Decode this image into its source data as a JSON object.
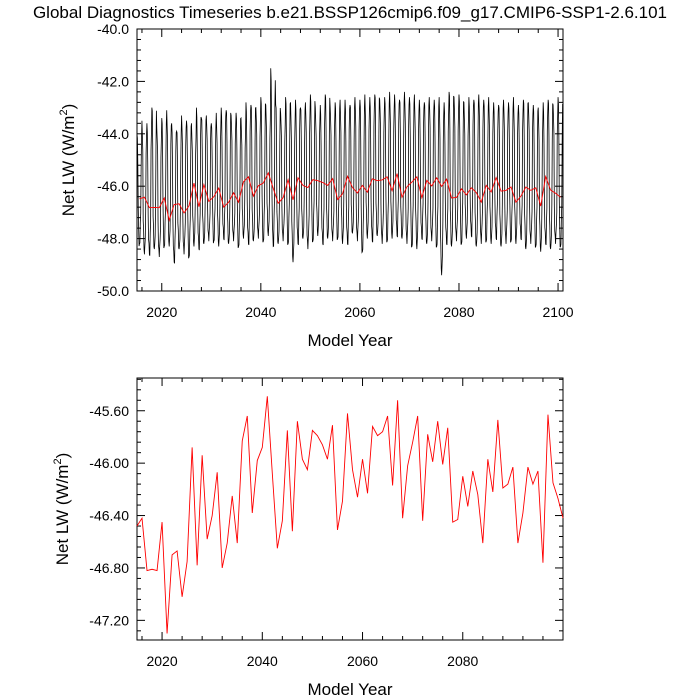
{
  "title": "Global Diagnostics Timeseries b.e21.BSSP126cmip6.f09_g17.CMIP6-SSP1-2.6.101",
  "colors": {
    "monthly": "#000000",
    "annual": "#ff0000"
  },
  "chart_data": [
    {
      "type": "line",
      "xlabel": "Model Year",
      "ylabel": "Net LW (W/m",
      "ylabel_sup": "2",
      "ylabel_close": ")",
      "xlim": [
        2015,
        2101
      ],
      "ylim": [
        -50.0,
        -40.0
      ],
      "xticks": [
        2020,
        2040,
        2060,
        2080,
        2100
      ],
      "xtick_labels": [
        "2020",
        "2040",
        "2060",
        "2080",
        "2100"
      ],
      "yticks": [
        -50.0,
        -48.0,
        -46.0,
        -44.0,
        -42.0,
        -40.0
      ],
      "ytick_labels": [
        "-50.0",
        "-48.0",
        "-46.0",
        "-44.0",
        "-42.0",
        "-40.0"
      ],
      "series": [
        {
          "name": "monthly",
          "color": "#000000",
          "description_values": "monthly mean, seasonal cycle between approx -48.5 (trough) and -43.5 (peak)",
          "start_year": 2015,
          "annual_peaks": [
            -44.0,
            -43.5,
            -43.6,
            -43.0,
            -43.8,
            -43.4,
            -43.1,
            -43.6,
            -43.9,
            -43.3,
            -43.5,
            -43.6,
            -43.0,
            -43.4,
            -43.3,
            -43.6,
            -43.2,
            -43.0,
            -43.1,
            -43.3,
            -43.2,
            -43.4,
            -42.8,
            -42.9,
            -43.0,
            -42.6,
            -42.9,
            -41.5,
            -42.9,
            -43.2,
            -42.6,
            -42.8,
            -42.7,
            -43.0,
            -42.8,
            -42.5,
            -43.0,
            -42.9,
            -42.5,
            -43.0,
            -42.8,
            -42.7,
            -42.7,
            -42.9,
            -42.6,
            -42.7,
            -42.5,
            -42.6,
            -42.5,
            -42.7,
            -42.6,
            -42.4,
            -42.5,
            -42.7,
            -42.4,
            -42.6,
            -42.5,
            -42.7,
            -42.8,
            -42.6,
            -42.7,
            -42.6,
            -42.8,
            -42.4,
            -42.6,
            -42.5,
            -42.8,
            -42.6,
            -42.7,
            -42.5,
            -42.7,
            -42.6,
            -42.8,
            -42.9,
            -42.7,
            -42.8,
            -42.6,
            -42.9,
            -42.7,
            -42.8,
            -42.9,
            -43.0,
            -42.8,
            -42.7,
            -42.9,
            -42.6
          ],
          "annual_troughs": [
            -48.2,
            -48.6,
            -48.6,
            -48.4,
            -48.7,
            -48.3,
            -48.3,
            -48.9,
            -48.4,
            -48.6,
            -48.7,
            -48.3,
            -48.4,
            -48.2,
            -48.1,
            -48.1,
            -48.3,
            -48.0,
            -48.2,
            -48.1,
            -48.3,
            -48.0,
            -48.2,
            -48.1,
            -48.0,
            -48.1,
            -47.9,
            -48.3,
            -48.2,
            -48.1,
            -48.2,
            -48.9,
            -48.2,
            -48.0,
            -48.4,
            -48.1,
            -47.9,
            -48.2,
            -48.0,
            -48.1,
            -48.0,
            -48.2,
            -48.2,
            -47.8,
            -48.1,
            -48.5,
            -48.0,
            -48.1,
            -47.9,
            -48.2,
            -48.1,
            -48.0,
            -47.9,
            -48.0,
            -48.2,
            -48.3,
            -48.4,
            -48.0,
            -48.2,
            -48.1,
            -48.3,
            -49.4,
            -48.2,
            -48.3,
            -48.1,
            -48.2,
            -48.0,
            -47.9,
            -48.3,
            -48.2,
            -48.1,
            -48.2,
            -48.0,
            -48.3,
            -48.2,
            -48.1,
            -48.2,
            -48.0,
            -48.4,
            -48.2,
            -48.3,
            -48.5,
            -48.2,
            -48.4,
            -48.2,
            -48.3
          ]
        },
        {
          "name": "annual",
          "color": "#ff0000",
          "x": [
            2015,
            2016,
            2017,
            2018,
            2019,
            2020,
            2021,
            2022,
            2023,
            2024,
            2025,
            2026,
            2027,
            2028,
            2029,
            2030,
            2031,
            2032,
            2033,
            2034,
            2035,
            2036,
            2037,
            2038,
            2039,
            2040,
            2041,
            2042,
            2043,
            2044,
            2045,
            2046,
            2047,
            2048,
            2049,
            2050,
            2051,
            2052,
            2053,
            2054,
            2055,
            2056,
            2057,
            2058,
            2059,
            2060,
            2061,
            2062,
            2063,
            2064,
            2065,
            2066,
            2067,
            2068,
            2069,
            2070,
            2071,
            2072,
            2073,
            2074,
            2075,
            2076,
            2077,
            2078,
            2079,
            2080,
            2081,
            2082,
            2083,
            2084,
            2085,
            2086,
            2087,
            2088,
            2089,
            2090,
            2091,
            2092,
            2093,
            2094,
            2095,
            2096,
            2097,
            2098,
            2099,
            2100
          ],
          "values": [
            -46.48,
            -46.42,
            -46.82,
            -46.81,
            -46.82,
            -46.45,
            -47.3,
            -46.7,
            -46.67,
            -47.02,
            -46.75,
            -45.88,
            -46.78,
            -45.94,
            -46.58,
            -46.4,
            -46.07,
            -46.8,
            -46.61,
            -46.25,
            -46.61,
            -45.83,
            -45.64,
            -46.38,
            -45.98,
            -45.88,
            -45.49,
            -46.08,
            -46.65,
            -46.44,
            -45.75,
            -46.52,
            -45.68,
            -45.97,
            -46.05,
            -45.75,
            -45.79,
            -45.86,
            -45.97,
            -45.71,
            -46.51,
            -46.29,
            -45.62,
            -46.05,
            -46.26,
            -45.97,
            -46.23,
            -45.72,
            -45.79,
            -45.76,
            -45.64,
            -46.17,
            -45.52,
            -46.42,
            -46.02,
            -45.84,
            -45.64,
            -46.44,
            -45.78,
            -45.99,
            -45.68,
            -46.01,
            -45.73,
            -46.45,
            -46.43,
            -46.1,
            -46.33,
            -46.06,
            -46.24,
            -46.61,
            -45.97,
            -46.22,
            -45.67,
            -46.19,
            -46.16,
            -46.03,
            -46.61,
            -46.38,
            -46.03,
            -46.16,
            -46.06,
            -46.76,
            -45.63,
            -46.15,
            -46.27,
            -46.42
          ]
        }
      ]
    },
    {
      "type": "line",
      "xlabel": "Model Year",
      "ylabel": "Net LW (W/m",
      "ylabel_sup": "2",
      "ylabel_close": ")",
      "xlim": [
        2015,
        2100
      ],
      "ylim": [
        -47.35,
        -45.35
      ],
      "xticks": [
        2020,
        2040,
        2060,
        2080
      ],
      "xtick_labels": [
        "2020",
        "2040",
        "2060",
        "2080"
      ],
      "yticks": [
        -47.2,
        -46.8,
        -46.4,
        -46.0,
        -45.6
      ],
      "ytick_labels": [
        "-47.20",
        "-46.80",
        "-46.40",
        "-46.00",
        "-45.60"
      ],
      "series": [
        {
          "name": "annual",
          "color": "#ff0000",
          "x": [
            2015,
            2016,
            2017,
            2018,
            2019,
            2020,
            2021,
            2022,
            2023,
            2024,
            2025,
            2026,
            2027,
            2028,
            2029,
            2030,
            2031,
            2032,
            2033,
            2034,
            2035,
            2036,
            2037,
            2038,
            2039,
            2040,
            2041,
            2042,
            2043,
            2044,
            2045,
            2046,
            2047,
            2048,
            2049,
            2050,
            2051,
            2052,
            2053,
            2054,
            2055,
            2056,
            2057,
            2058,
            2059,
            2060,
            2061,
            2062,
            2063,
            2064,
            2065,
            2066,
            2067,
            2068,
            2069,
            2070,
            2071,
            2072,
            2073,
            2074,
            2075,
            2076,
            2077,
            2078,
            2079,
            2080,
            2081,
            2082,
            2083,
            2084,
            2085,
            2086,
            2087,
            2088,
            2089,
            2090,
            2091,
            2092,
            2093,
            2094,
            2095,
            2096,
            2097,
            2098,
            2099,
            2100
          ],
          "values": [
            -46.48,
            -46.42,
            -46.82,
            -46.81,
            -46.82,
            -46.45,
            -47.3,
            -46.7,
            -46.67,
            -47.02,
            -46.75,
            -45.88,
            -46.78,
            -45.94,
            -46.58,
            -46.4,
            -46.07,
            -46.8,
            -46.61,
            -46.25,
            -46.61,
            -45.83,
            -45.64,
            -46.38,
            -45.98,
            -45.88,
            -45.49,
            -46.08,
            -46.65,
            -46.44,
            -45.75,
            -46.52,
            -45.68,
            -45.97,
            -46.05,
            -45.75,
            -45.79,
            -45.86,
            -45.97,
            -45.71,
            -46.51,
            -46.29,
            -45.62,
            -46.05,
            -46.26,
            -45.97,
            -46.23,
            -45.72,
            -45.79,
            -45.76,
            -45.64,
            -46.17,
            -45.52,
            -46.42,
            -46.02,
            -45.84,
            -45.64,
            -46.44,
            -45.78,
            -45.99,
            -45.68,
            -46.01,
            -45.73,
            -46.45,
            -46.43,
            -46.1,
            -46.33,
            -46.06,
            -46.24,
            -46.61,
            -45.97,
            -46.22,
            -45.67,
            -46.19,
            -46.16,
            -46.03,
            -46.61,
            -46.38,
            -46.03,
            -46.16,
            -46.06,
            -46.76,
            -45.63,
            -46.15,
            -46.27,
            -46.42
          ]
        }
      ]
    }
  ]
}
